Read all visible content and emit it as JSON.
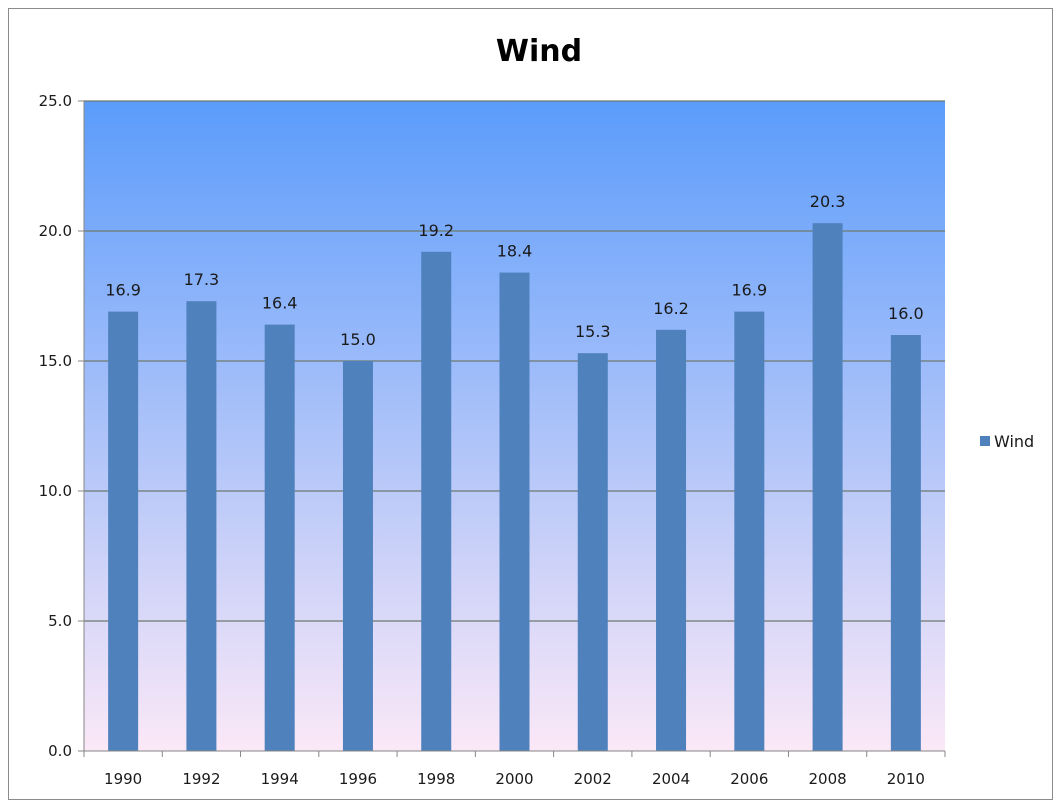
{
  "chart_data": {
    "type": "bar",
    "title": "Wind",
    "xlabel": "",
    "ylabel": "",
    "categories": [
      "1990",
      "1992",
      "1994",
      "1996",
      "1998",
      "2000",
      "2002",
      "2004",
      "2006",
      "2008",
      "2010"
    ],
    "series": [
      {
        "name": "Wind",
        "values": [
          16.9,
          17.3,
          16.4,
          15.0,
          19.2,
          18.4,
          15.3,
          16.2,
          16.9,
          20.3,
          16.0
        ],
        "color": "#4f81bd"
      }
    ],
    "data_labels": [
      "16.9",
      "17.3",
      "16.4",
      "15.0",
      "19.2",
      "18.4",
      "15.3",
      "16.2",
      "16.9",
      "20.3",
      "16.0"
    ],
    "ylim": [
      0,
      25
    ],
    "yticks": [
      0,
      5,
      10,
      15,
      20,
      25
    ],
    "ytick_labels": [
      "0.0",
      "5.0",
      "10.0",
      "15.0",
      "20.0",
      "25.0"
    ],
    "grid": true,
    "legend_position": "right",
    "plot_background_gradient": [
      "#5b9cfb",
      "#fbe8f7"
    ]
  }
}
